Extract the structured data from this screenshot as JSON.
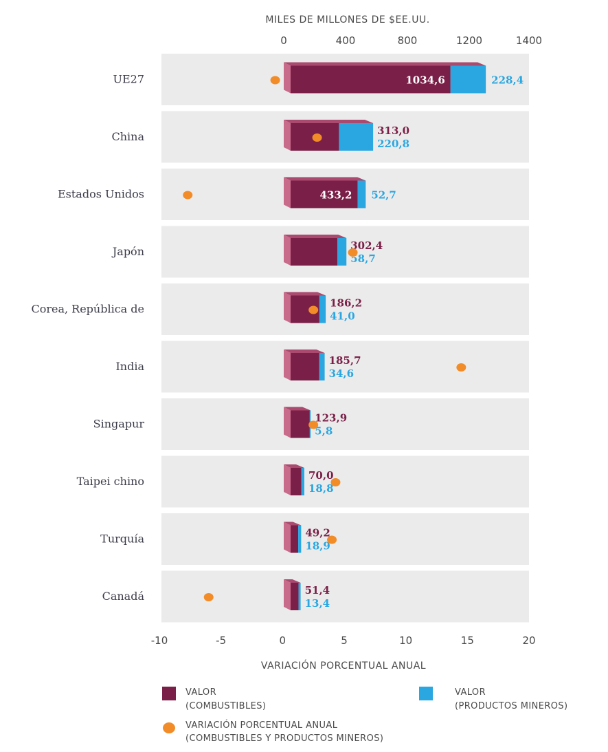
{
  "chart_data": {
    "type": "bar",
    "top_axis_title": "MILES DE MILLONES DE $EE.UU.",
    "top_axis_ticks": [
      "0",
      "400",
      "800",
      "1200",
      "1400"
    ],
    "top_axis_tick_values": [
      0,
      400,
      800,
      1200,
      1400
    ],
    "bottom_axis_title": "VARIACIÓN PORCENTUAL ANUAL",
    "bottom_axis_ticks": [
      "-10",
      "-5",
      "0",
      "5",
      "10",
      "15",
      "20"
    ],
    "bottom_axis_range": [
      -10,
      20
    ],
    "categories": [
      "UE27",
      "China",
      "Estados Unidos",
      "Japón",
      "Corea, República de",
      "India",
      "Singapur",
      "Taipei chino",
      "Turquía",
      "Canadá"
    ],
    "series": [
      {
        "name": "VALOR (COMBUSTIBLES)",
        "color": "#7a1f47",
        "values": [
          1034.6,
          313.0,
          433.2,
          302.4,
          186.2,
          185.7,
          123.9,
          70.0,
          49.2,
          51.4
        ],
        "labels": [
          "1034,6",
          "313,0",
          "433,2",
          "302,4",
          "186,2",
          "185,7",
          "123,9",
          "70,0",
          "49,2",
          "51,4"
        ]
      },
      {
        "name": "VALOR (PRODUCTOS MINEROS)",
        "color": "#2aa6e0",
        "values": [
          228.4,
          220.8,
          52.7,
          58.7,
          41.0,
          34.6,
          5.8,
          18.8,
          18.9,
          13.4
        ],
        "labels": [
          "228,4",
          "220,8",
          "52,7",
          "58,7",
          "41,0",
          "34,6",
          "5,8",
          "18,8",
          "18,9",
          "13,4"
        ]
      },
      {
        "name": "VARIACIÓN PORCENTUAL ANUAL (COMBUSTIBLES Y PRODUCTOS MINEROS)",
        "color": "#f28c28",
        "values": [
          -0.6,
          2.8,
          -7.7,
          5.7,
          2.5,
          14.5,
          2.5,
          4.3,
          4.0,
          -6.0
        ]
      }
    ],
    "legend": {
      "fuel_line1": "VALOR",
      "fuel_line2": "(COMBUSTIBLES)",
      "mineral_line1": "VALOR",
      "mineral_line2": "(PRODUCTOS MINEROS)",
      "change_line1": "VARIACIÓN PORCENTUAL ANUAL",
      "change_line2": "(COMBUSTIBLES Y PRODUCTOS MINEROS)",
      "placement": "bottom"
    },
    "grid": false
  }
}
